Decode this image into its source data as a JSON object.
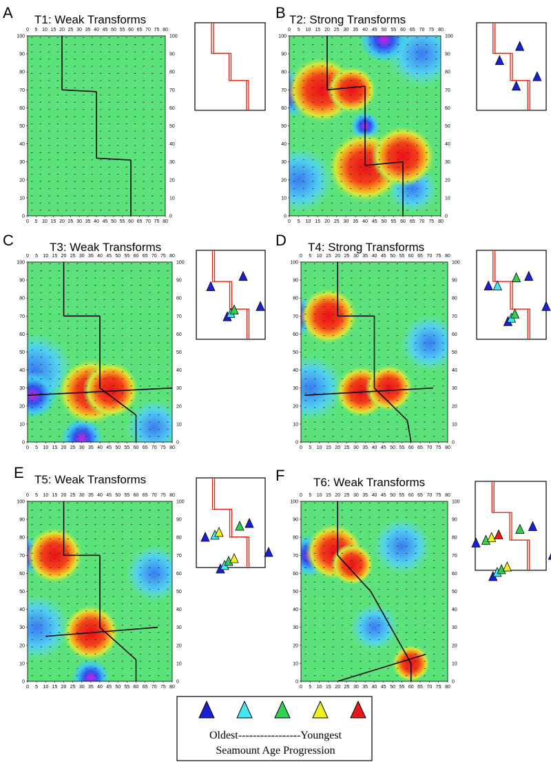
{
  "panels": [
    {
      "letter": "A",
      "title": "T1: Weak Transforms"
    },
    {
      "letter": "B",
      "title": "T2: Strong Transforms"
    },
    {
      "letter": "C",
      "title": "T3: Weak Transforms"
    },
    {
      "letter": "D",
      "title": "T4: Strong Transforms"
    },
    {
      "letter": "E",
      "title": "T5: Weak Transforms"
    },
    {
      "letter": "F",
      "title": "T6: Weak Transforms"
    }
  ],
  "xticks": [
    0,
    5,
    10,
    15,
    20,
    25,
    30,
    35,
    40,
    45,
    50,
    55,
    60,
    65,
    70,
    75,
    80
  ],
  "yticks": [
    0,
    10,
    20,
    30,
    40,
    50,
    60,
    70,
    80,
    90,
    100
  ],
  "legend": {
    "scale": "Oldest-----------------Youngest",
    "caption": "Seamount Age Progression"
  }
}
